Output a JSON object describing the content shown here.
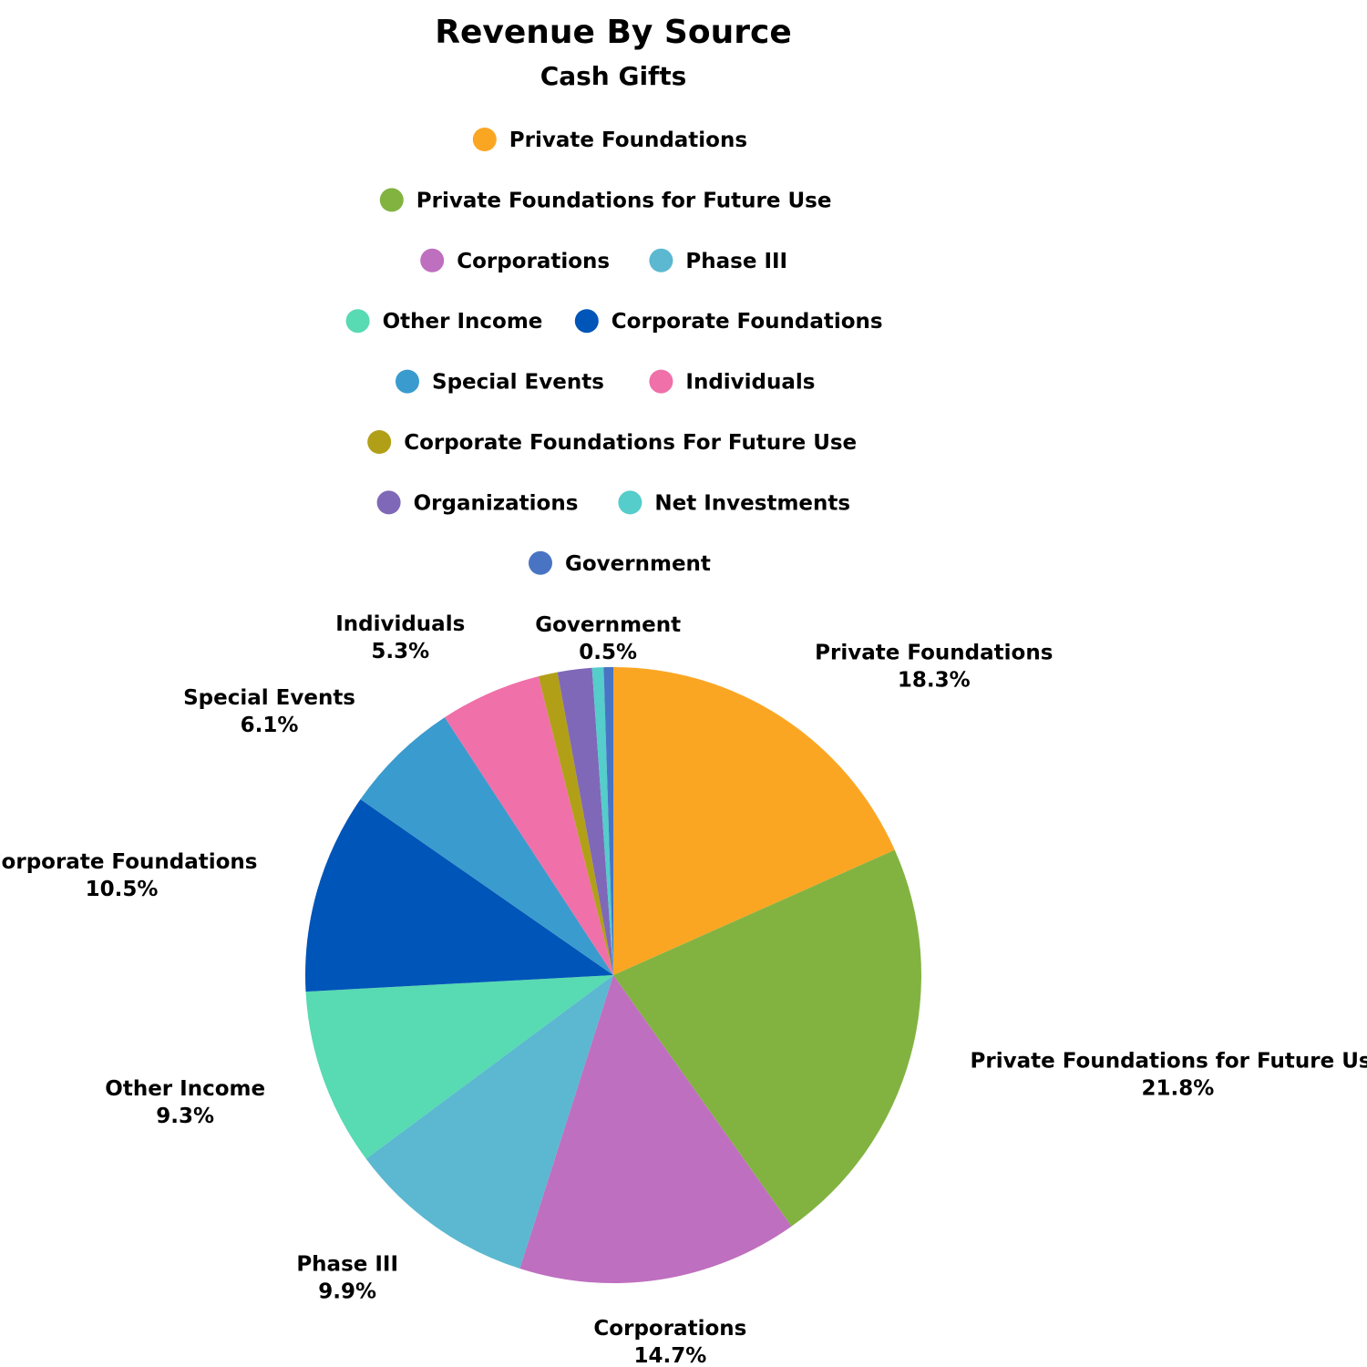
{
  "chart_data": {
    "type": "pie",
    "title": "Revenue By Source",
    "subtitle": "Cash Gifts",
    "legend_position": "top",
    "slices": [
      {
        "name": "Private Foundations",
        "value": 18.3,
        "label": "18.3%",
        "color": "#FBA623",
        "show_label": true
      },
      {
        "name": "Private Foundations for Future Use",
        "value": 21.8,
        "label": "21.8%",
        "color": "#82B341",
        "show_label": true
      },
      {
        "name": "Corporations",
        "value": 14.7,
        "label": "14.7%",
        "color": "#BF6FBF",
        "show_label": true
      },
      {
        "name": "Phase III",
        "value": 9.9,
        "label": "9.9%",
        "color": "#5BB8D0",
        "show_label": true
      },
      {
        "name": "Other Income",
        "value": 9.3,
        "label": "9.3%",
        "color": "#58DAB2",
        "show_label": true
      },
      {
        "name": "Corporate Foundations",
        "value": 10.5,
        "label": "10.5%",
        "color": "#0055B8",
        "show_label": true
      },
      {
        "name": "Special Events",
        "value": 6.1,
        "label": "6.1%",
        "color": "#3A9BCE",
        "show_label": true
      },
      {
        "name": "Individuals",
        "value": 5.3,
        "label": "5.3%",
        "color": "#F070A9",
        "show_label": true
      },
      {
        "name": "Corporate Foundations For Future Use",
        "value": 1.0,
        "color": "#B1A017",
        "show_label": false
      },
      {
        "name": "Organizations",
        "value": 1.8,
        "color": "#7F68B7",
        "show_label": false
      },
      {
        "name": "Net Investments",
        "value": 0.6,
        "color": "#54CDCB",
        "show_label": false
      },
      {
        "name": "Government",
        "value": 0.5,
        "label": "0.5%",
        "color": "#4974C4",
        "show_label": true
      }
    ],
    "legend_rows": [
      [
        "Private Foundations"
      ],
      [
        "Private Foundations for Future Use"
      ],
      [
        "Corporations",
        "Phase III"
      ],
      [
        "Other Income",
        "Corporate Foundations"
      ],
      [
        "Special Events",
        "Individuals"
      ],
      [
        "Corporate Foundations For Future Use"
      ],
      [
        "Organizations",
        "Net Investments"
      ],
      [
        "Government"
      ]
    ]
  }
}
